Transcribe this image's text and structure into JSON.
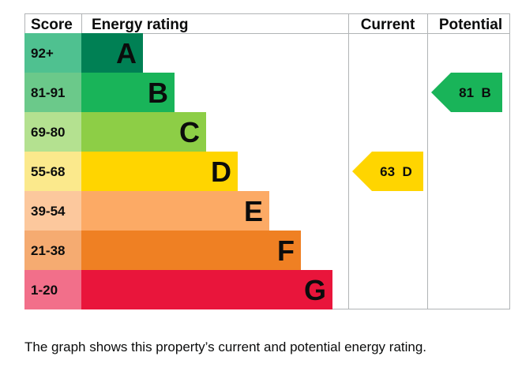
{
  "chart_data": {
    "type": "bar",
    "headers": {
      "score": "Score",
      "rating": "Energy rating",
      "current": "Current",
      "potential": "Potential"
    },
    "bands": [
      {
        "score": "92+",
        "letter": "A",
        "color": "#008054",
        "score_color": "#4fc190"
      },
      {
        "score": "81-91",
        "letter": "B",
        "color": "#19b459",
        "score_color": "#6bc98a"
      },
      {
        "score": "69-80",
        "letter": "C",
        "color": "#8dce46",
        "score_color": "#b4e190"
      },
      {
        "score": "55-68",
        "letter": "D",
        "color": "#ffd500",
        "score_color": "#fbe98c"
      },
      {
        "score": "39-54",
        "letter": "E",
        "color": "#fcaa65",
        "score_color": "#fcc89d"
      },
      {
        "score": "21-38",
        "letter": "F",
        "color": "#ef8023",
        "score_color": "#f5ab71"
      },
      {
        "score": "1-20",
        "letter": "G",
        "color": "#e9153b",
        "score_color": "#f26f8a"
      }
    ],
    "current": {
      "value": 63,
      "band": "D",
      "label": "63  D",
      "color": "#ffd500"
    },
    "potential": {
      "value": 81,
      "band": "B",
      "label": "81  B",
      "color": "#19b459"
    }
  },
  "caption": "The graph shows this property’s current and potential energy rating."
}
